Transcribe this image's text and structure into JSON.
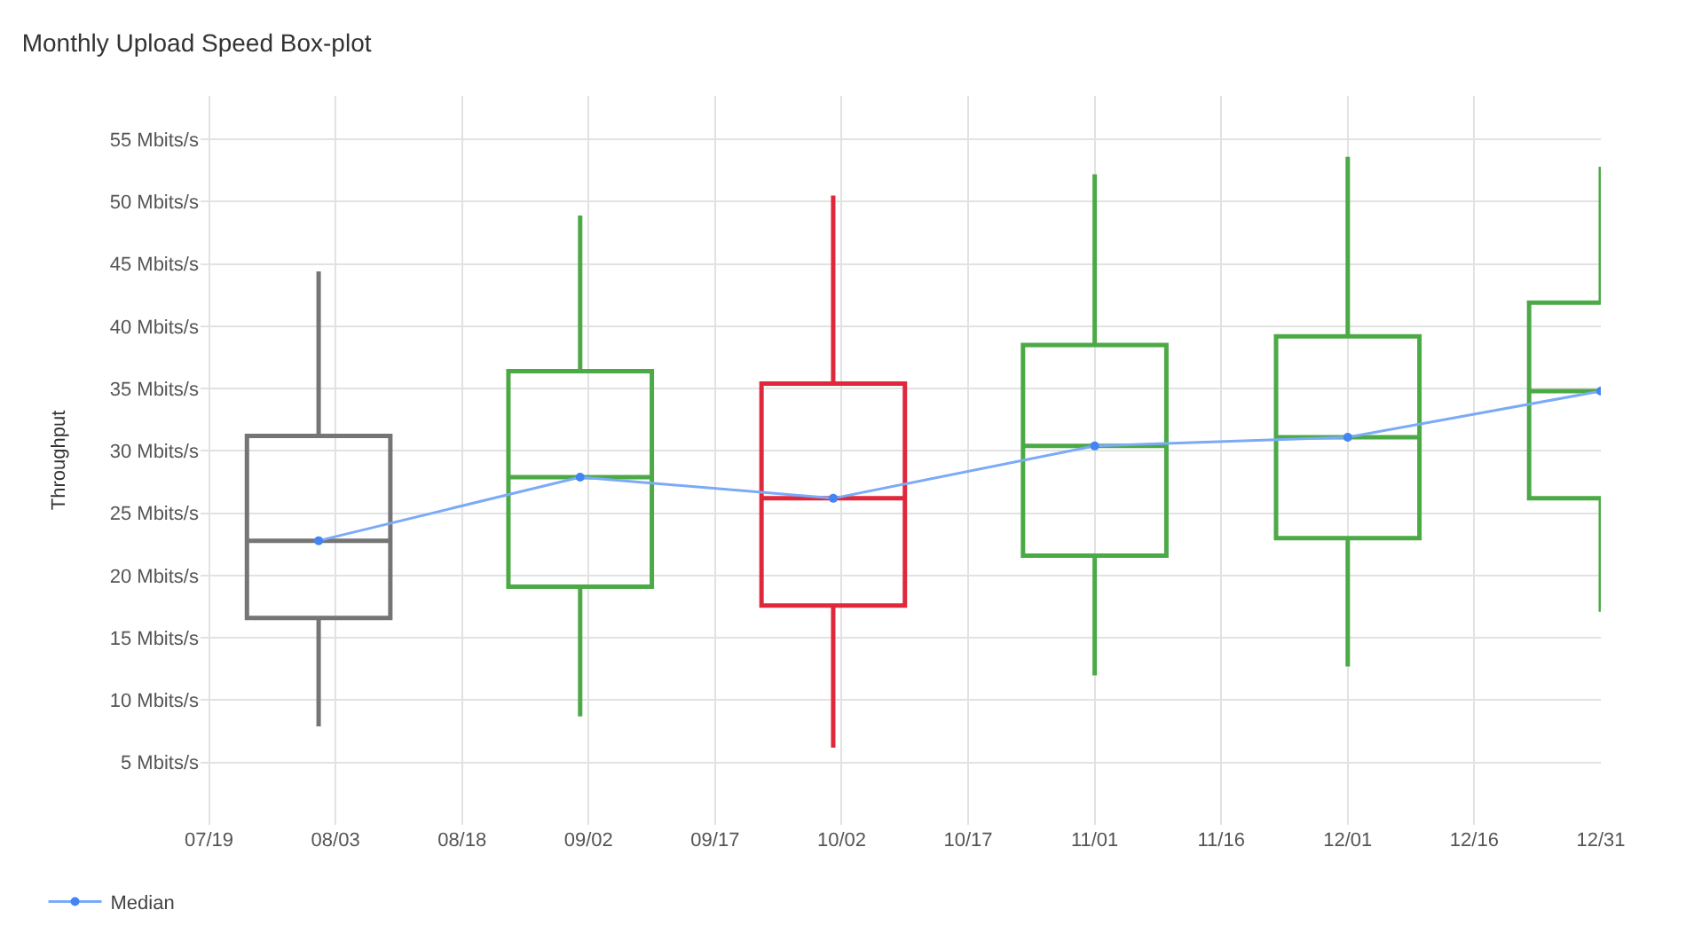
{
  "chart_data": {
    "type": "box",
    "title": "Monthly Upload Speed Box-plot",
    "ylabel": "Throughput",
    "x": [
      "--08-01",
      "--09-01",
      "--10-01",
      "--11-01",
      "--12-01",
      "--12-31"
    ],
    "series": [
      {
        "colors": [
          "#757575",
          "#4caa46",
          "#e0283c",
          "#4caa46",
          "#4caa46",
          "#4caa46"
        ],
        "boxes": [
          {
            "low": 7.9,
            "q1": 16.6,
            "median": 22.8,
            "q3": 31.2,
            "high": 44.4
          },
          {
            "low": 8.7,
            "q1": 19.1,
            "median": 27.9,
            "q3": 36.4,
            "high": 48.9
          },
          {
            "low": 6.2,
            "q1": 17.6,
            "median": 26.2,
            "q3": 35.4,
            "high": 50.5
          },
          {
            "low": 12.0,
            "q1": 21.6,
            "median": 30.4,
            "q3": 38.5,
            "high": 52.2
          },
          {
            "low": 12.7,
            "q1": 23.0,
            "median": 31.1,
            "q3": 39.2,
            "high": 53.6
          },
          {
            "low": 17.1,
            "q1": 26.2,
            "median": 34.8,
            "q3": 41.9,
            "high": 52.8
          }
        ]
      },
      {
        "type": "line",
        "name": "Median",
        "color": "#7baaf7",
        "values": [
          22.8,
          27.9,
          26.2,
          30.4,
          31.1,
          34.8
        ]
      }
    ],
    "xlim": [
      "--07-18",
      "--12-31"
    ],
    "xticks": [
      {
        "value": "--07-19",
        "label": "07/19"
      },
      {
        "value": "--08-03",
        "label": "08/03"
      },
      {
        "value": "--08-18",
        "label": "08/18"
      },
      {
        "value": "--09-02",
        "label": "09/02"
      },
      {
        "value": "--09-17",
        "label": "09/17"
      },
      {
        "value": "--10-02",
        "label": "10/02"
      },
      {
        "value": "--10-17",
        "label": "10/17"
      },
      {
        "value": "--11-01",
        "label": "11/01"
      },
      {
        "value": "--11-16",
        "label": "11/16"
      },
      {
        "value": "--12-01",
        "label": "12/01"
      },
      {
        "value": "--12-16",
        "label": "12/16"
      },
      {
        "value": "--12-31",
        "label": "12/31"
      }
    ],
    "ylim": [
      0,
      58.5
    ],
    "yticks": [
      {
        "value": 5,
        "label": "5 Mbits/s"
      },
      {
        "value": 10,
        "label": "10 Mbits/s"
      },
      {
        "value": 15,
        "label": "15 Mbits/s"
      },
      {
        "value": 20,
        "label": "20 Mbits/s"
      },
      {
        "value": 25,
        "label": "25 Mbits/s"
      },
      {
        "value": 30,
        "label": "30 Mbits/s"
      },
      {
        "value": 35,
        "label": "35 Mbits/s"
      },
      {
        "value": 40,
        "label": "40 Mbits/s"
      },
      {
        "value": 45,
        "label": "45 Mbits/s"
      },
      {
        "value": 50,
        "label": "50 Mbits/s"
      },
      {
        "value": 55,
        "label": "55 Mbits/s"
      }
    ],
    "grid": true,
    "legend": "bottom left",
    "marker": "circle"
  }
}
